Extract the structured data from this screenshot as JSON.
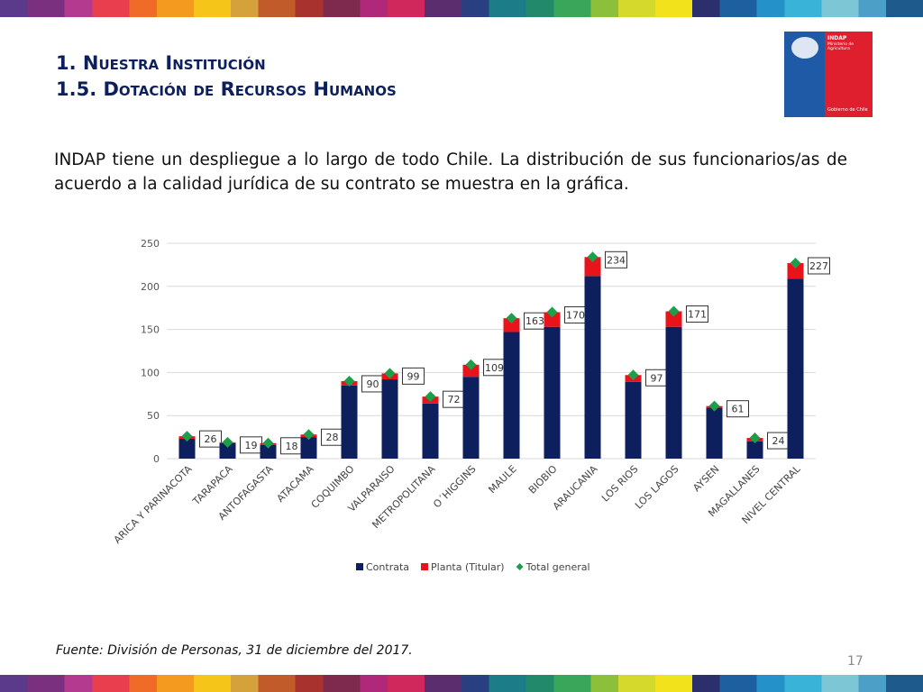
{
  "heading": {
    "line1": "1. Nuestra Institución",
    "line2": "1.5. Dotación de Recursos Humanos"
  },
  "logo": {
    "name": "INDAP",
    "ministry": "Ministerio de Agricultura",
    "government": "Gobierno de Chile"
  },
  "intro": "INDAP tiene un despliegue a lo largo de todo Chile. La distribución de sus funcionarios/as de acuerdo a la calidad jurídica de su contrato se muestra en la gráfica.",
  "chart_data": {
    "type": "bar",
    "stacked": true,
    "categories": [
      "ARICA Y PARINACOTA",
      "TARAPACA",
      "ANTOFAGASTA",
      "ATACAMA",
      "COQUIMBO",
      "VALPARAISO",
      "METROPOLITANA",
      "O´HIGGINS",
      "MAULE",
      "BIOBIO",
      "ARAUCANIA",
      "LOS RIOS",
      "LOS LAGOS",
      "AYSEN",
      "MAGALLANES",
      "NIVEL CENTRAL"
    ],
    "series": [
      {
        "name": "Contrata",
        "color": "#0d1f5c",
        "values": [
          23,
          18,
          16,
          25,
          85,
          92,
          64,
          95,
          147,
          153,
          212,
          89,
          153,
          59,
          20,
          209
        ]
      },
      {
        "name": "Planta (Titular)",
        "color": "#e8131b",
        "values": [
          3,
          1,
          2,
          3,
          5,
          7,
          8,
          14,
          16,
          17,
          22,
          8,
          18,
          2,
          4,
          18
        ]
      },
      {
        "name": "Total general",
        "type": "marker",
        "color": "#1e9e4a",
        "values": [
          26,
          19,
          18,
          28,
          90,
          99,
          72,
          109,
          163,
          170,
          234,
          97,
          171,
          61,
          24,
          227
        ]
      }
    ],
    "ylim": [
      0,
      250
    ],
    "yticks": [
      0,
      50,
      100,
      150,
      200,
      250
    ],
    "grid": true,
    "legend": "bottom"
  },
  "footer": {
    "source": "Fuente: División de Personas, 31 de diciembre del 2017.",
    "page": "17"
  }
}
